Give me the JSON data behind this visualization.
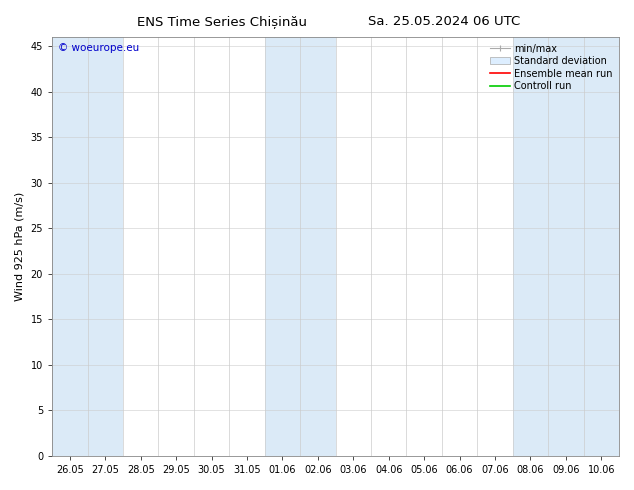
{
  "title_left": "ENS Time Series Chișinău",
  "title_right": "Sa. 25.05.2024 06 UTC",
  "ylabel": "Wind 925 hPa (m/s)",
  "ylim": [
    0,
    46
  ],
  "yticks": [
    0,
    5,
    10,
    15,
    20,
    25,
    30,
    35,
    40,
    45
  ],
  "x_labels": [
    "26.05",
    "27.05",
    "28.05",
    "29.05",
    "30.05",
    "31.05",
    "01.06",
    "02.06",
    "03.06",
    "04.06",
    "05.06",
    "06.06",
    "07.06",
    "08.06",
    "09.06",
    "10.06"
  ],
  "n_points": 16,
  "shaded_indices": [
    0,
    1,
    6,
    7,
    13,
    14,
    15
  ],
  "shade_color": "#dbeaf7",
  "bg_color": "#ffffff",
  "watermark": "© woeurope.eu",
  "watermark_color": "#0000cc",
  "legend_entries": [
    "min/max",
    "Standard deviation",
    "Ensemble mean run",
    "Controll run"
  ],
  "legend_colors_line": [
    "#aaaaaa",
    "#cccccc",
    "#ff0000",
    "#00cc00"
  ],
  "title_fontsize": 9.5,
  "ylabel_fontsize": 8,
  "tick_fontsize": 7,
  "watermark_fontsize": 7.5,
  "legend_fontsize": 7
}
